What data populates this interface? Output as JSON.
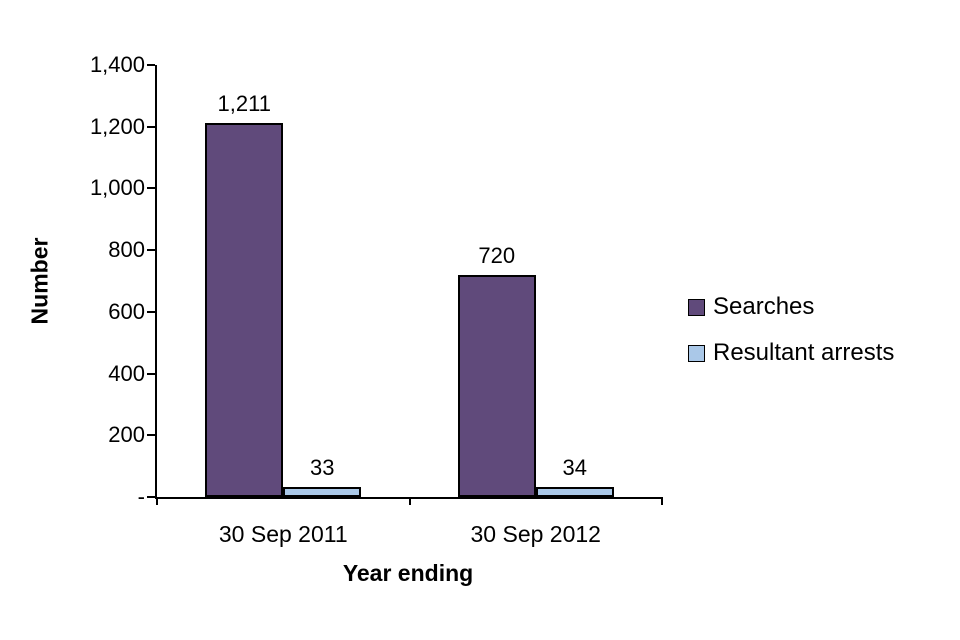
{
  "chart_data": {
    "type": "bar",
    "xlabel": "Year ending",
    "ylabel": "Number",
    "categories": [
      "30 Sep 2011",
      "30 Sep 2012"
    ],
    "series": [
      {
        "name": "Searches",
        "color": "#604a7b",
        "values": [
          1211,
          720
        ],
        "value_labels": [
          "1,211",
          "720"
        ]
      },
      {
        "name": "Resultant arrests",
        "color": "#aac8e8",
        "values": [
          33,
          34
        ],
        "value_labels": [
          "33",
          "34"
        ]
      }
    ],
    "ylim": [
      0,
      1400
    ],
    "ytick_step": 200,
    "ytick_labels": [
      "-",
      "200",
      "400",
      "600",
      "800",
      "1,000",
      "1,200",
      "1,400"
    ],
    "grid": false,
    "legend_position": "right",
    "axis_color": "#000000",
    "text_color": "#000000"
  }
}
